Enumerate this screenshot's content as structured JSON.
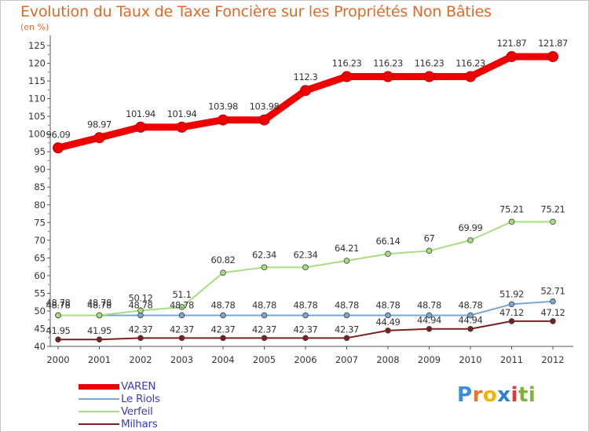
{
  "title": "Evolution du Taux de Taxe Foncière sur les Propriétés Non Bâties",
  "unit": "(en %)",
  "brand": {
    "letters": [
      "P",
      "r",
      "o",
      "x",
      "i",
      "t",
      "i"
    ],
    "colors": [
      "#3c8fd6",
      "#e7782a",
      "#f0b400",
      "#2f7fd0",
      "#e5343a",
      "#7fb335",
      "#7fb335"
    ]
  },
  "chart_data": {
    "type": "line",
    "title": "Evolution du Taux de Taxe Foncière sur les Propriétés Non Bâties",
    "ylabel": "(en %)",
    "xlabel": "",
    "x": [
      "2000",
      "2001",
      "2002",
      "2003",
      "2004",
      "2005",
      "2006",
      "2007",
      "2008",
      "2009",
      "2010",
      "2011",
      "2012"
    ],
    "ylim": [
      40,
      125
    ],
    "yticks": [
      40,
      45,
      50,
      55,
      60,
      65,
      70,
      75,
      80,
      85,
      90,
      95,
      100,
      105,
      110,
      115,
      120,
      125
    ],
    "grid": false,
    "legend_position": "bottom-left",
    "series": [
      {
        "name": "VAREN",
        "color": "#ee0000",
        "values": [
          96.09,
          98.97,
          101.94,
          101.94,
          103.98,
          103.98,
          112.3,
          116.23,
          116.23,
          116.23,
          116.23,
          121.87,
          121.87
        ],
        "labels": [
          "96.09",
          "98.97",
          "101.94",
          "101.94",
          "103.98",
          "103.98",
          "112.3",
          "116.23",
          "116.23",
          "116.23",
          "116.23",
          "121.87",
          "121.87"
        ]
      },
      {
        "name": "Le Riols",
        "color": "#7aa7cf",
        "values": [
          48.78,
          48.78,
          48.78,
          48.78,
          48.78,
          48.78,
          48.78,
          48.78,
          48.78,
          48.78,
          48.78,
          51.92,
          52.71
        ],
        "labels": [
          "48.78",
          "48.78",
          "48.78",
          "48.78",
          "48.78",
          "48.78",
          "48.78",
          "48.78",
          "48.78",
          "48.78",
          "48.78",
          "51.92",
          "52.71"
        ]
      },
      {
        "name": "Verfeil",
        "color": "#a8dd80",
        "values": [
          48.78,
          48.78,
          50.12,
          51.1,
          60.82,
          62.34,
          62.34,
          64.21,
          66.14,
          67,
          69.99,
          75.21,
          75.21
        ],
        "labels": [
          "48.78",
          "48.78",
          "50.12",
          "51.1",
          "60.82",
          "62.34",
          "62.34",
          "64.21",
          "66.14",
          "67",
          "69.99",
          "75.21",
          "75.21"
        ]
      },
      {
        "name": "Milhars",
        "color": "#7a2020",
        "values": [
          41.95,
          41.95,
          42.37,
          42.37,
          42.37,
          42.37,
          42.37,
          42.37,
          44.49,
          44.94,
          44.94,
          47.12,
          47.12
        ],
        "labels": [
          "41.95",
          "41.95",
          "42.37",
          "42.37",
          "42.37",
          "42.37",
          "42.37",
          "42.37",
          "44.49",
          "44.94",
          "44.94",
          "47.12",
          "47.12"
        ]
      }
    ]
  }
}
